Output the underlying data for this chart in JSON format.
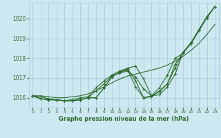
{
  "x": [
    0,
    1,
    2,
    3,
    4,
    5,
    6,
    7,
    8,
    9,
    10,
    11,
    12,
    13,
    14,
    15,
    16,
    17,
    18,
    19,
    20,
    21,
    22,
    23
  ],
  "line1": [
    1016.1,
    1016.05,
    1015.95,
    1015.9,
    1015.85,
    1015.85,
    1015.9,
    1016.0,
    1016.0,
    1016.5,
    1017.05,
    1017.3,
    1017.45,
    1016.85,
    1016.0,
    1016.05,
    1016.35,
    1016.7,
    1017.7,
    1018.3,
    1018.75,
    1019.4,
    1020.1,
    1020.6
  ],
  "line2": [
    1016.1,
    1015.95,
    1015.9,
    1015.88,
    1015.85,
    1015.85,
    1015.9,
    1016.0,
    1016.0,
    1016.5,
    1017.05,
    1017.3,
    1017.4,
    1016.55,
    1016.0,
    1016.1,
    1016.5,
    1017.15,
    1018.0,
    1018.25,
    1018.75,
    1019.4,
    1020.05,
    1020.6
  ],
  "line3": [
    1016.1,
    1015.95,
    1015.9,
    1015.9,
    1015.85,
    1015.85,
    1015.9,
    1016.0,
    1016.35,
    1016.7,
    1017.1,
    1017.25,
    1017.35,
    1017.05,
    1016.45,
    1016.1,
    1016.3,
    1016.7,
    1017.5,
    1018.3,
    1018.75,
    1019.4,
    1020.05,
    1020.6
  ],
  "line4": [
    1016.1,
    1015.95,
    1015.9,
    1015.9,
    1015.85,
    1015.9,
    1016.0,
    1016.05,
    1016.5,
    1016.85,
    1017.15,
    1017.35,
    1017.5,
    1017.6,
    1016.95,
    1016.1,
    1016.15,
    1016.55,
    1017.2,
    1018.3,
    1018.8,
    1019.45,
    1020.1,
    1020.6
  ],
  "line_smooth": [
    1016.1,
    1016.1,
    1016.05,
    1016.0,
    1016.0,
    1016.05,
    1016.1,
    1016.2,
    1016.35,
    1016.55,
    1016.75,
    1016.95,
    1017.1,
    1017.2,
    1017.3,
    1017.4,
    1017.5,
    1017.65,
    1017.85,
    1018.1,
    1018.4,
    1018.75,
    1019.2,
    1019.7
  ],
  "line_color": "#2d6a2d",
  "bg_color": "#cde8f0",
  "grid_color": "#a0c8d8",
  "xlabel": "Graphe pression niveau de la mer (hPa)",
  "xlabel_color": "#2d6a2d",
  "ylim": [
    1015.5,
    1020.8
  ],
  "xlim": [
    -0.5,
    23.5
  ],
  "yticks": [
    1016,
    1017,
    1018,
    1019,
    1020
  ],
  "xticks": [
    0,
    1,
    2,
    3,
    4,
    5,
    6,
    7,
    8,
    9,
    10,
    11,
    12,
    13,
    14,
    15,
    16,
    17,
    18,
    19,
    20,
    21,
    22,
    23
  ],
  "marker": "+",
  "markersize": 3,
  "linewidth": 0.8
}
